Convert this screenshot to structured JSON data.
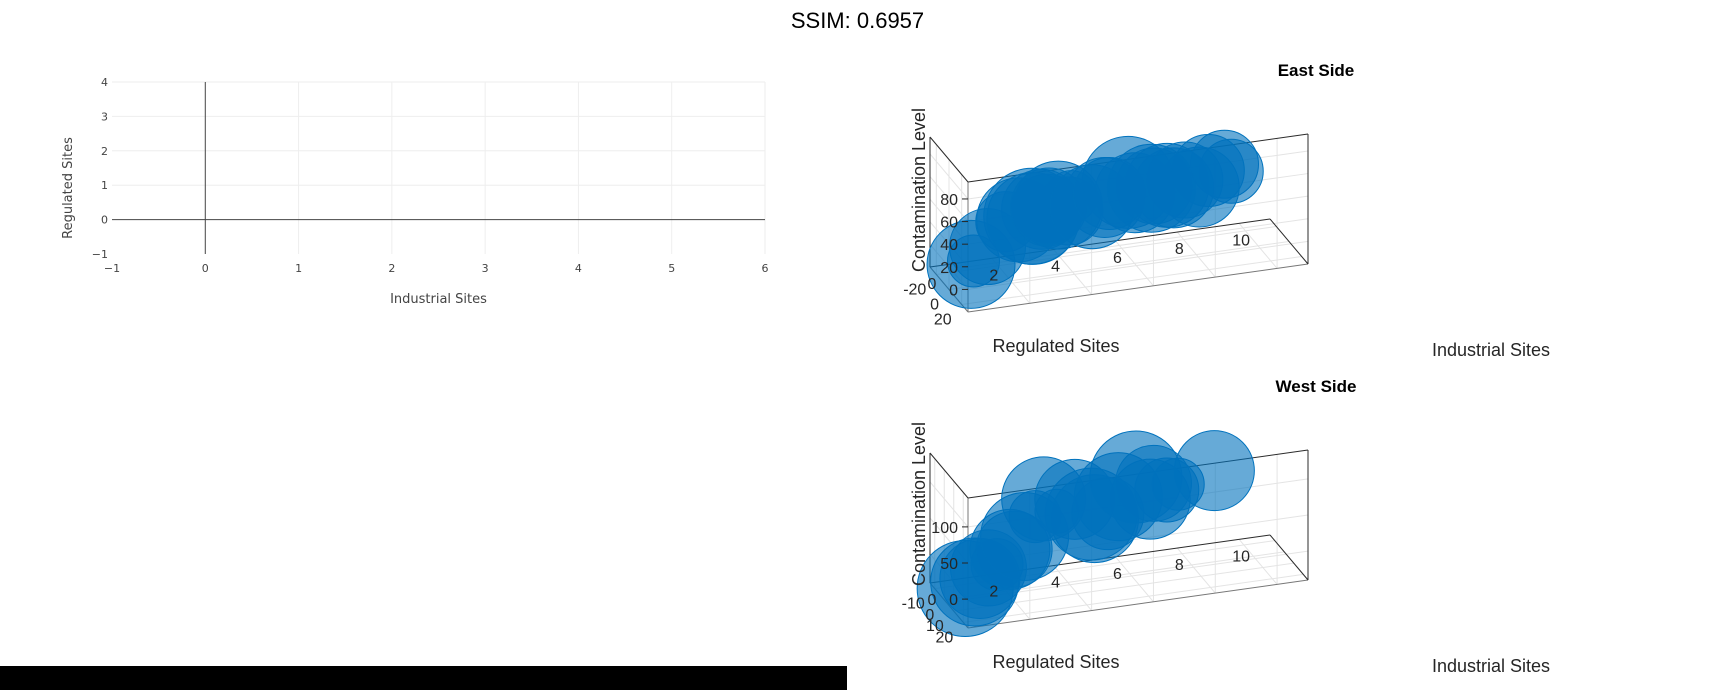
{
  "header": {
    "ssim_text": "SSIM: 0.6957"
  },
  "chart_data": [
    {
      "type": "scatter",
      "panel": "left",
      "title": "",
      "xlabel": "Industrial Sites",
      "ylabel": "Regulated Sites",
      "xlim": [
        -1,
        6
      ],
      "ylim": [
        -1,
        4
      ],
      "xticks": [
        -1,
        0,
        1,
        2,
        3,
        4,
        5,
        6
      ],
      "yticks": [
        -1,
        0,
        1,
        2,
        3,
        4
      ],
      "grid": true,
      "series": []
    },
    {
      "type": "scatter",
      "dimension": "3d",
      "title": "East Side",
      "xlabel": "Industrial Sites",
      "ylabel": "Regulated Sites",
      "zlabel": "Contamination Level",
      "xticks": [
        0,
        2,
        4,
        6,
        8,
        10
      ],
      "yticks": [
        20,
        0,
        -20
      ],
      "zticks": [
        0,
        20,
        40,
        60,
        80
      ],
      "xlim": [
        0,
        11
      ],
      "ylim": [
        -30,
        30
      ],
      "zlim": [
        -20,
        95
      ],
      "grid": true,
      "marker_color": "#0072BD",
      "points": [
        {
          "x": 0.2,
          "y": 25,
          "z": 18,
          "s": 44
        },
        {
          "x": 0.3,
          "y": 24,
          "z": 20,
          "s": 26
        },
        {
          "x": 1.0,
          "y": 12,
          "z": 22,
          "s": 38
        },
        {
          "x": 2.0,
          "y": -8,
          "z": 27,
          "s": 30
        },
        {
          "x": 2.5,
          "y": -12,
          "z": 24,
          "s": 42
        },
        {
          "x": 2.8,
          "y": -6,
          "z": 30,
          "s": 48
        },
        {
          "x": 3.0,
          "y": -14,
          "z": 22,
          "s": 46
        },
        {
          "x": 3.2,
          "y": -10,
          "z": 32,
          "s": 40
        },
        {
          "x": 3.5,
          "y": -16,
          "z": 26,
          "s": 36
        },
        {
          "x": 3.7,
          "y": -8,
          "z": 35,
          "s": 44
        },
        {
          "x": 3.6,
          "y": -18,
          "z": 28,
          "s": 38
        },
        {
          "x": 4.0,
          "y": -6,
          "z": 30,
          "s": 34
        },
        {
          "x": 4.2,
          "y": -12,
          "z": 38,
          "s": 26
        },
        {
          "x": 5.0,
          "y": -18,
          "z": 22,
          "s": 42
        },
        {
          "x": 5.2,
          "y": -8,
          "z": 36,
          "s": 40
        },
        {
          "x": 5.6,
          "y": -20,
          "z": 30,
          "s": 36
        },
        {
          "x": 6.0,
          "y": -10,
          "z": 45,
          "s": 46
        },
        {
          "x": 6.3,
          "y": -14,
          "z": 32,
          "s": 40
        },
        {
          "x": 6.8,
          "y": -8,
          "z": 40,
          "s": 38
        },
        {
          "x": 7.0,
          "y": -22,
          "z": 28,
          "s": 44
        },
        {
          "x": 7.3,
          "y": -12,
          "z": 36,
          "s": 42
        },
        {
          "x": 7.6,
          "y": -16,
          "z": 30,
          "s": 40
        },
        {
          "x": 8.0,
          "y": -18,
          "z": 34,
          "s": 38
        },
        {
          "x": 8.3,
          "y": -10,
          "z": 32,
          "s": 40
        },
        {
          "x": 8.8,
          "y": -20,
          "z": 38,
          "s": 36
        },
        {
          "x": 9.2,
          "y": -14,
          "z": 46,
          "s": 34
        },
        {
          "x": 9.5,
          "y": -18,
          "z": 36,
          "s": 32
        }
      ]
    },
    {
      "type": "scatter",
      "dimension": "3d",
      "title": "West Side",
      "xlabel": "Industrial Sites",
      "ylabel": "Regulated Sites",
      "zlabel": "Contamination Level",
      "xticks": [
        0,
        2,
        4,
        6,
        8,
        10
      ],
      "yticks": [
        20,
        10,
        0,
        -10
      ],
      "zticks": [
        0,
        50,
        100
      ],
      "xlim": [
        0,
        11
      ],
      "ylim": [
        -15,
        25
      ],
      "zlim": [
        -40,
        140
      ],
      "grid": true,
      "marker_color": "#0072BD",
      "points": [
        {
          "x": 0.0,
          "y": 22,
          "z": 10,
          "s": 48
        },
        {
          "x": 0.4,
          "y": 19,
          "z": 12,
          "s": 44
        },
        {
          "x": 0.6,
          "y": 18,
          "z": 14,
          "s": 40
        },
        {
          "x": 1.0,
          "y": 14,
          "z": 20,
          "s": 38
        },
        {
          "x": 1.4,
          "y": 10,
          "z": 16,
          "s": 26
        },
        {
          "x": 2.0,
          "y": 4,
          "z": 24,
          "s": 40
        },
        {
          "x": 2.2,
          "y": 2,
          "z": 20,
          "s": 38
        },
        {
          "x": 2.6,
          "y": 0,
          "z": 32,
          "s": 44
        },
        {
          "x": 3.0,
          "y": -2,
          "z": 54,
          "s": 26
        },
        {
          "x": 3.4,
          "y": -6,
          "z": 70,
          "s": 42
        },
        {
          "x": 3.8,
          "y": -5,
          "z": 52,
          "s": 22
        },
        {
          "x": 4.5,
          "y": -9,
          "z": 58,
          "s": 40
        },
        {
          "x": 5.0,
          "y": -8,
          "z": 36,
          "s": 46
        },
        {
          "x": 5.2,
          "y": -11,
          "z": 24,
          "s": 44
        },
        {
          "x": 5.6,
          "y": -10,
          "z": 30,
          "s": 36
        },
        {
          "x": 6.0,
          "y": -12,
          "z": 48,
          "s": 44
        },
        {
          "x": 6.6,
          "y": -13,
          "z": 70,
          "s": 46
        },
        {
          "x": 7.0,
          "y": -11,
          "z": 40,
          "s": 40
        },
        {
          "x": 7.2,
          "y": -14,
          "z": 56,
          "s": 38
        },
        {
          "x": 7.6,
          "y": -13,
          "z": 46,
          "s": 32
        },
        {
          "x": 8.0,
          "y": -14,
          "z": 50,
          "s": 26
        },
        {
          "x": 9.2,
          "y": -15,
          "z": 60,
          "s": 40
        }
      ]
    }
  ]
}
